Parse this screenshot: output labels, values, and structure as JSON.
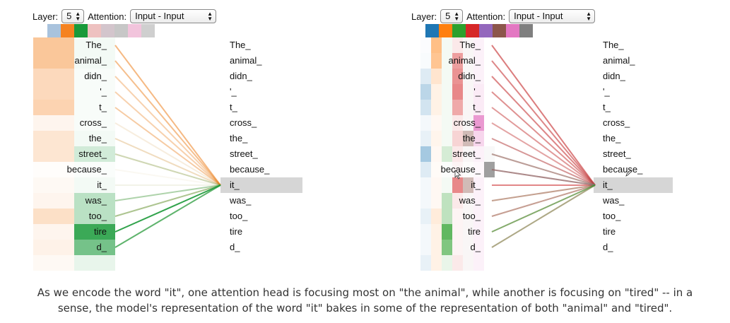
{
  "panels": [
    {
      "layer_label": "Layer:",
      "layer_value": "5",
      "attention_label": "Attention:",
      "attention_value": "Input - Input",
      "swatch_colors": [
        "#a9c3dd",
        "#f58220",
        "#199a3a",
        "#eec1c0",
        "#d3c5cc",
        "#c7c7c7",
        "#f2c4dc",
        "#cfcfcf"
      ],
      "tokens_left": [
        "The_",
        "animal_",
        "didn_",
        "'_",
        "t_",
        "cross_",
        "the_",
        "street_",
        "because_",
        "it_",
        "was_",
        "too_",
        "tire",
        "d_"
      ],
      "tokens_right": [
        "The_",
        "animal_",
        "didn_",
        "'_",
        "t_",
        "cross_",
        "the_",
        "street_",
        "because_",
        "it_",
        "was_",
        "too_",
        "tire",
        "d_"
      ],
      "selected_index": 9,
      "head_columns": [
        {
          "color": "#f58220",
          "weights": [
            0.45,
            0.45,
            0.3,
            0.3,
            0.35,
            0.08,
            0.2,
            0.2,
            0.02,
            0.05,
            0.08,
            0.25,
            0.08,
            0.1,
            0.05
          ]
        },
        {
          "color": "#199a3a",
          "weights": [
            0.05,
            0.05,
            0.03,
            0.03,
            0.03,
            0.03,
            0.05,
            0.2,
            0.02,
            0.05,
            0.3,
            0.3,
            0.85,
            0.6,
            0.1
          ]
        }
      ],
      "line_heads": [
        {
          "color": "#f58220",
          "weights": [
            0.55,
            0.5,
            0.35,
            0.35,
            0.4,
            0.12,
            0.25,
            0.2,
            0.04,
            0.06,
            0.1,
            0.28,
            0.08,
            0.12
          ]
        },
        {
          "color": "#199a3a",
          "weights": [
            0.02,
            0.02,
            0.02,
            0.02,
            0.02,
            0.03,
            0.05,
            0.2,
            0.02,
            0.05,
            0.35,
            0.35,
            0.9,
            0.7
          ]
        }
      ]
    },
    {
      "layer_label": "Layer:",
      "layer_value": "5",
      "attention_label": "Attention:",
      "attention_value": "Input - Input",
      "swatch_colors": [
        "#1f77b4",
        "#ff7f0e",
        "#2ca02c",
        "#d62728",
        "#9467bd",
        "#8c564b",
        "#e377c2",
        "#7f7f7f"
      ],
      "tokens_left": [
        "The_",
        "animal_",
        "didn_",
        "'_",
        "t_",
        "cross_",
        "the_",
        "street_",
        "because_",
        "it_",
        "was_",
        "too_",
        "tire",
        "d_"
      ],
      "tokens_right": [
        "The_",
        "animal_",
        "didn_",
        "'_",
        "t_",
        "cross_",
        "the_",
        "street_",
        "because_",
        "it_",
        "was_",
        "too_",
        "tire",
        "d_"
      ],
      "selected_index": 9,
      "head_columns": [
        {
          "color": "#1f77b4",
          "weights": [
            0.02,
            0.03,
            0.15,
            0.3,
            0.2,
            0.05,
            0.1,
            0.4,
            0.15,
            0.05,
            0.05,
            0.1,
            0.05,
            0.05,
            0.1
          ]
        },
        {
          "color": "#ff7f0e",
          "weights": [
            0.5,
            0.45,
            0.2,
            0.1,
            0.1,
            0.05,
            0.08,
            0.05,
            0.03,
            0.05,
            0.05,
            0.15,
            0.1,
            0.1,
            0.1
          ]
        },
        {
          "color": "#2ca02c",
          "weights": [
            0.05,
            0.05,
            0.05,
            0.05,
            0.05,
            0.05,
            0.05,
            0.2,
            0.02,
            0.05,
            0.3,
            0.3,
            0.75,
            0.6,
            0.1
          ]
        },
        {
          "color": "#d62728",
          "weights": [
            0.1,
            0.45,
            0.5,
            0.55,
            0.4,
            0.1,
            0.2,
            0.1,
            0.05,
            0.55,
            0.1,
            0.05,
            0.05,
            0.05,
            0.1
          ]
        },
        {
          "color": "#8c564b",
          "weights": [
            0.05,
            0.05,
            0.05,
            0.05,
            0.05,
            0.05,
            0.4,
            0.05,
            0.02,
            0.4,
            0.05,
            0.05,
            0.05,
            0.05,
            0.05
          ]
        },
        {
          "color": "#e377c2",
          "weights": [
            0.1,
            0.1,
            0.1,
            0.15,
            0.15,
            0.75,
            0.3,
            0.1,
            0.05,
            0.1,
            0.1,
            0.1,
            0.1,
            0.1,
            0.1
          ]
        },
        {
          "color": "#7f7f7f",
          "weights": [
            0.0,
            0.0,
            0.0,
            0.0,
            0.0,
            0.0,
            0.0,
            0.05,
            0.75,
            0.0,
            0.0,
            0.0,
            0.0,
            0.0,
            0.0
          ]
        }
      ],
      "line_heads": [
        {
          "color": "#d62728",
          "weights": [
            0.6,
            0.55,
            0.55,
            0.5,
            0.45,
            0.4,
            0.45,
            0.35,
            0.45,
            0.55,
            0.4,
            0.4,
            0.3,
            0.35
          ]
        },
        {
          "color": "#7f7f7f",
          "weights": [
            0.1,
            0.1,
            0.1,
            0.1,
            0.1,
            0.1,
            0.2,
            0.4,
            0.6,
            0.05,
            0.15,
            0.2,
            0.05,
            0.1
          ]
        },
        {
          "color": "#2ca02c",
          "weights": [
            0.0,
            0.0,
            0.0,
            0.0,
            0.0,
            0.0,
            0.0,
            0.05,
            0.0,
            0.0,
            0.15,
            0.1,
            0.55,
            0.3
          ]
        }
      ]
    }
  ],
  "caption": {
    "line1": "As we encode the word \"it\", one attention head is focusing most on \"the animal\", while another is focusing on \"tired\" -- in a",
    "line2": "sense, the model's representation of the word \"it\" bakes in some of the representation of both \"animal\" and \"tired\"."
  }
}
